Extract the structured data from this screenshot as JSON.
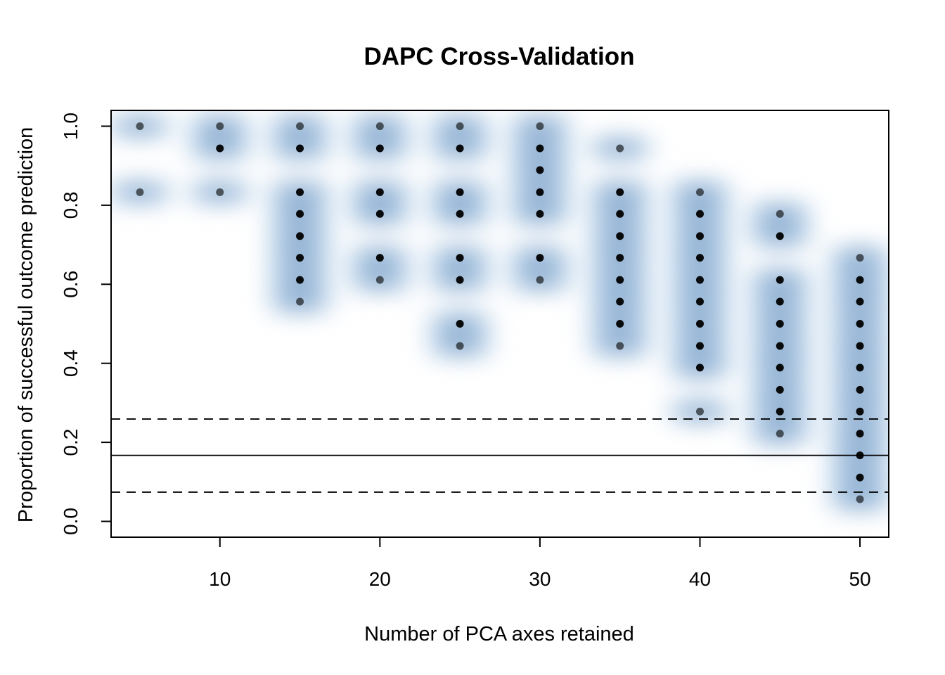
{
  "chart_data": {
    "type": "scatter",
    "title": "DAPC Cross-Validation",
    "xlabel": "Number of PCA axes retained",
    "ylabel": "Proportion of successful outcome prediction",
    "xlim": [
      3.2,
      51.8
    ],
    "ylim": [
      -0.04,
      1.04
    ],
    "x_ticks": [
      10,
      20,
      30,
      40,
      50
    ],
    "y_ticks": [
      0.0,
      0.2,
      0.4,
      0.6,
      0.8,
      1.0
    ],
    "x_tick_labels": [
      "10",
      "20",
      "30",
      "40",
      "50"
    ],
    "y_tick_labels": [
      "0.0",
      "0.2",
      "0.4",
      "0.6",
      "0.8",
      "1.0"
    ],
    "grid": false,
    "legend": "none",
    "background": "2D density heat map of the points, white to dark blue",
    "points": [
      {
        "x": 5,
        "y": [
          1.0,
          0.833
        ]
      },
      {
        "x": 10,
        "y": [
          1.0,
          0.944,
          0.833
        ]
      },
      {
        "x": 15,
        "y": [
          1.0,
          0.944,
          0.833,
          0.778,
          0.722,
          0.667,
          0.611,
          0.556
        ]
      },
      {
        "x": 20,
        "y": [
          1.0,
          0.944,
          0.833,
          0.778,
          0.667,
          0.611
        ]
      },
      {
        "x": 25,
        "y": [
          1.0,
          0.944,
          0.833,
          0.778,
          0.667,
          0.611,
          0.5,
          0.444
        ]
      },
      {
        "x": 30,
        "y": [
          1.0,
          0.944,
          0.889,
          0.833,
          0.778,
          0.667,
          0.611
        ]
      },
      {
        "x": 35,
        "y": [
          0.944,
          0.833,
          0.778,
          0.722,
          0.667,
          0.611,
          0.556,
          0.5,
          0.444
        ]
      },
      {
        "x": 40,
        "y": [
          0.833,
          0.778,
          0.722,
          0.667,
          0.611,
          0.556,
          0.5,
          0.444,
          0.389,
          0.278
        ]
      },
      {
        "x": 45,
        "y": [
          0.778,
          0.722,
          0.611,
          0.556,
          0.5,
          0.444,
          0.389,
          0.333,
          0.278,
          0.222
        ]
      },
      {
        "x": 50,
        "y": [
          0.667,
          0.611,
          0.556,
          0.5,
          0.444,
          0.389,
          0.333,
          0.278,
          0.222,
          0.167,
          0.111,
          0.056
        ]
      }
    ],
    "reference_lines": [
      {
        "style": "solid",
        "y": 0.167
      },
      {
        "style": "dashed",
        "y": 0.259
      },
      {
        "style": "dashed",
        "y": 0.074
      }
    ],
    "colors": {
      "density_high": "#08306b",
      "density_mid": "#4f94cd",
      "density_low": "#c6dbef",
      "points": "#000000",
      "lines": "#000000"
    }
  }
}
